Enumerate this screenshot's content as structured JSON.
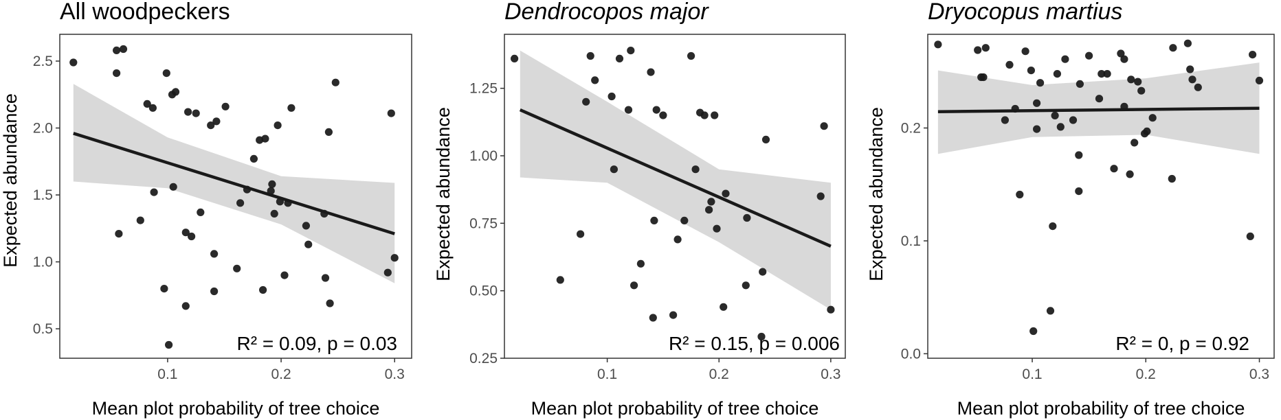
{
  "chart_data": [
    {
      "type": "scatter",
      "title": "All woodpeckers",
      "title_style": "normal",
      "xlabel": "Mean plot probability of tree choice",
      "ylabel": "Expected abundance",
      "xlim": [
        0.005,
        0.315
      ],
      "ylim": [
        0.28,
        2.7
      ],
      "xticks": [
        0.1,
        0.2,
        0.3
      ],
      "xtick_labels": [
        "0.1",
        "0.2",
        "0.3"
      ],
      "yticks": [
        0.5,
        1.0,
        1.5,
        2.0,
        2.5
      ],
      "ytick_labels": [
        "0.5",
        "1.0",
        "1.5",
        "2.0",
        "2.5"
      ],
      "annotation": "R² = 0.09, p = 0.03",
      "grid": false,
      "fit": {
        "x": [
          0.017,
          0.3
        ],
        "y": [
          1.96,
          1.21
        ]
      },
      "ci": {
        "x": [
          0.017,
          0.1,
          0.2,
          0.3
        ],
        "upper": [
          2.33,
          1.93,
          1.64,
          1.59
        ],
        "lower": [
          1.6,
          1.55,
          1.28,
          0.84
        ]
      },
      "points": [
        [
          0.017,
          2.49
        ],
        [
          0.055,
          2.58
        ],
        [
          0.061,
          2.59
        ],
        [
          0.055,
          2.41
        ],
        [
          0.057,
          1.21
        ],
        [
          0.076,
          1.31
        ],
        [
          0.082,
          2.18
        ],
        [
          0.087,
          2.15
        ],
        [
          0.088,
          1.52
        ],
        [
          0.097,
          0.8
        ],
        [
          0.099,
          2.41
        ],
        [
          0.104,
          2.25
        ],
        [
          0.107,
          2.27
        ],
        [
          0.105,
          1.56
        ],
        [
          0.116,
          0.67
        ],
        [
          0.116,
          1.22
        ],
        [
          0.118,
          2.12
        ],
        [
          0.121,
          1.19
        ],
        [
          0.125,
          2.11
        ],
        [
          0.129,
          1.37
        ],
        [
          0.138,
          2.02
        ],
        [
          0.141,
          1.06
        ],
        [
          0.141,
          0.78
        ],
        [
          0.143,
          2.05
        ],
        [
          0.151,
          2.16
        ],
        [
          0.161,
          0.95
        ],
        [
          0.164,
          1.44
        ],
        [
          0.17,
          1.54
        ],
        [
          0.176,
          1.77
        ],
        [
          0.181,
          1.91
        ],
        [
          0.184,
          0.79
        ],
        [
          0.186,
          1.92
        ],
        [
          0.191,
          1.53
        ],
        [
          0.192,
          1.58
        ],
        [
          0.194,
          1.36
        ],
        [
          0.197,
          2.02
        ],
        [
          0.199,
          1.45
        ],
        [
          0.203,
          0.9
        ],
        [
          0.206,
          1.44
        ],
        [
          0.209,
          2.15
        ],
        [
          0.222,
          1.27
        ],
        [
          0.224,
          1.13
        ],
        [
          0.238,
          1.36
        ],
        [
          0.239,
          0.88
        ],
        [
          0.242,
          1.97
        ],
        [
          0.243,
          0.69
        ],
        [
          0.248,
          2.34
        ],
        [
          0.294,
          0.92
        ],
        [
          0.297,
          2.11
        ],
        [
          0.3,
          1.03
        ],
        [
          0.101,
          0.38
        ]
      ]
    },
    {
      "type": "scatter",
      "title": "Dendrocopos major",
      "title_style": "italic",
      "xlabel": "Mean plot probability of tree choice",
      "ylabel": "Expected abundance",
      "xlim": [
        0.008,
        0.313
      ],
      "ylim": [
        0.25,
        1.45
      ],
      "xticks": [
        0.1,
        0.2,
        0.3
      ],
      "xtick_labels": [
        "0.1",
        "0.2",
        "0.3"
      ],
      "yticks": [
        0.25,
        0.5,
        0.75,
        1.0,
        1.25
      ],
      "ytick_labels": [
        "0.25",
        "0.50",
        "0.75",
        "1.00",
        "1.25"
      ],
      "annotation": "R² = 0.15, p = 0.006",
      "grid": false,
      "fit": {
        "x": [
          0.022,
          0.3
        ],
        "y": [
          1.17,
          0.665
        ]
      },
      "ci": {
        "x": [
          0.022,
          0.1,
          0.2,
          0.3
        ],
        "upper": [
          1.39,
          1.2,
          0.95,
          0.9
        ],
        "lower": [
          0.92,
          0.9,
          0.68,
          0.43
        ]
      },
      "points": [
        [
          0.017,
          1.36
        ],
        [
          0.058,
          0.54
        ],
        [
          0.076,
          0.71
        ],
        [
          0.081,
          1.2
        ],
        [
          0.085,
          1.37
        ],
        [
          0.089,
          1.28
        ],
        [
          0.104,
          1.22
        ],
        [
          0.106,
          0.95
        ],
        [
          0.111,
          1.36
        ],
        [
          0.119,
          1.17
        ],
        [
          0.121,
          1.39
        ],
        [
          0.124,
          0.52
        ],
        [
          0.13,
          0.6
        ],
        [
          0.139,
          1.31
        ],
        [
          0.142,
          0.76
        ],
        [
          0.141,
          0.4
        ],
        [
          0.144,
          1.17
        ],
        [
          0.15,
          1.15
        ],
        [
          0.159,
          0.41
        ],
        [
          0.163,
          0.69
        ],
        [
          0.169,
          0.76
        ],
        [
          0.175,
          1.37
        ],
        [
          0.179,
          0.95
        ],
        [
          0.183,
          1.16
        ],
        [
          0.187,
          1.15
        ],
        [
          0.191,
          0.8
        ],
        [
          0.193,
          0.83
        ],
        [
          0.196,
          1.15
        ],
        [
          0.198,
          0.73
        ],
        [
          0.204,
          0.44
        ],
        [
          0.206,
          0.86
        ],
        [
          0.224,
          0.52
        ],
        [
          0.225,
          0.77
        ],
        [
          0.238,
          0.33
        ],
        [
          0.239,
          0.57
        ],
        [
          0.242,
          1.06
        ],
        [
          0.291,
          0.85
        ],
        [
          0.294,
          1.11
        ],
        [
          0.3,
          0.43
        ]
      ]
    },
    {
      "type": "scatter",
      "title": "Dryocopus martius",
      "title_style": "italic",
      "xlabel": "Mean plot probability of tree choice",
      "ylabel": "Expected abundance",
      "xlim": [
        0.008,
        0.313
      ],
      "ylim": [
        -0.004,
        0.283
      ],
      "xticks": [
        0.1,
        0.2,
        0.3
      ],
      "xtick_labels": [
        "0.1",
        "0.2",
        "0.3"
      ],
      "yticks": [
        0.0,
        0.1,
        0.2
      ],
      "ytick_labels": [
        "0.0",
        "0.1",
        "0.2"
      ],
      "annotation": "R² = 0, p = 0.92",
      "grid": false,
      "fit": {
        "x": [
          0.017,
          0.3
        ],
        "y": [
          0.2145,
          0.2175
        ]
      },
      "ci": {
        "x": [
          0.017,
          0.1,
          0.2,
          0.3
        ],
        "upper": [
          0.251,
          0.238,
          0.244,
          0.258
        ],
        "lower": [
          0.177,
          0.192,
          0.194,
          0.177
        ]
      },
      "points": [
        [
          0.017,
          0.274
        ],
        [
          0.052,
          0.269
        ],
        [
          0.055,
          0.245
        ],
        [
          0.057,
          0.245
        ],
        [
          0.059,
          0.271
        ],
        [
          0.076,
          0.207
        ],
        [
          0.08,
          0.256
        ],
        [
          0.085,
          0.217
        ],
        [
          0.089,
          0.141
        ],
        [
          0.094,
          0.268
        ],
        [
          0.099,
          0.251
        ],
        [
          0.101,
          0.02
        ],
        [
          0.104,
          0.222
        ],
        [
          0.104,
          0.199
        ],
        [
          0.107,
          0.24
        ],
        [
          0.116,
          0.038
        ],
        [
          0.118,
          0.113
        ],
        [
          0.12,
          0.211
        ],
        [
          0.122,
          0.248
        ],
        [
          0.125,
          0.201
        ],
        [
          0.129,
          0.261
        ],
        [
          0.136,
          0.207
        ],
        [
          0.141,
          0.176
        ],
        [
          0.141,
          0.144
        ],
        [
          0.142,
          0.239
        ],
        [
          0.15,
          0.264
        ],
        [
          0.159,
          0.226
        ],
        [
          0.161,
          0.248
        ],
        [
          0.166,
          0.248
        ],
        [
          0.172,
          0.164
        ],
        [
          0.178,
          0.266
        ],
        [
          0.181,
          0.261
        ],
        [
          0.181,
          0.219
        ],
        [
          0.186,
          0.159
        ],
        [
          0.187,
          0.243
        ],
        [
          0.19,
          0.187
        ],
        [
          0.193,
          0.241
        ],
        [
          0.196,
          0.233
        ],
        [
          0.199,
          0.195
        ],
        [
          0.201,
          0.197
        ],
        [
          0.206,
          0.209
        ],
        [
          0.223,
          0.155
        ],
        [
          0.224,
          0.271
        ],
        [
          0.237,
          0.275
        ],
        [
          0.239,
          0.252
        ],
        [
          0.241,
          0.243
        ],
        [
          0.246,
          0.236
        ],
        [
          0.292,
          0.104
        ],
        [
          0.294,
          0.265
        ],
        [
          0.3,
          0.242
        ]
      ]
    }
  ]
}
